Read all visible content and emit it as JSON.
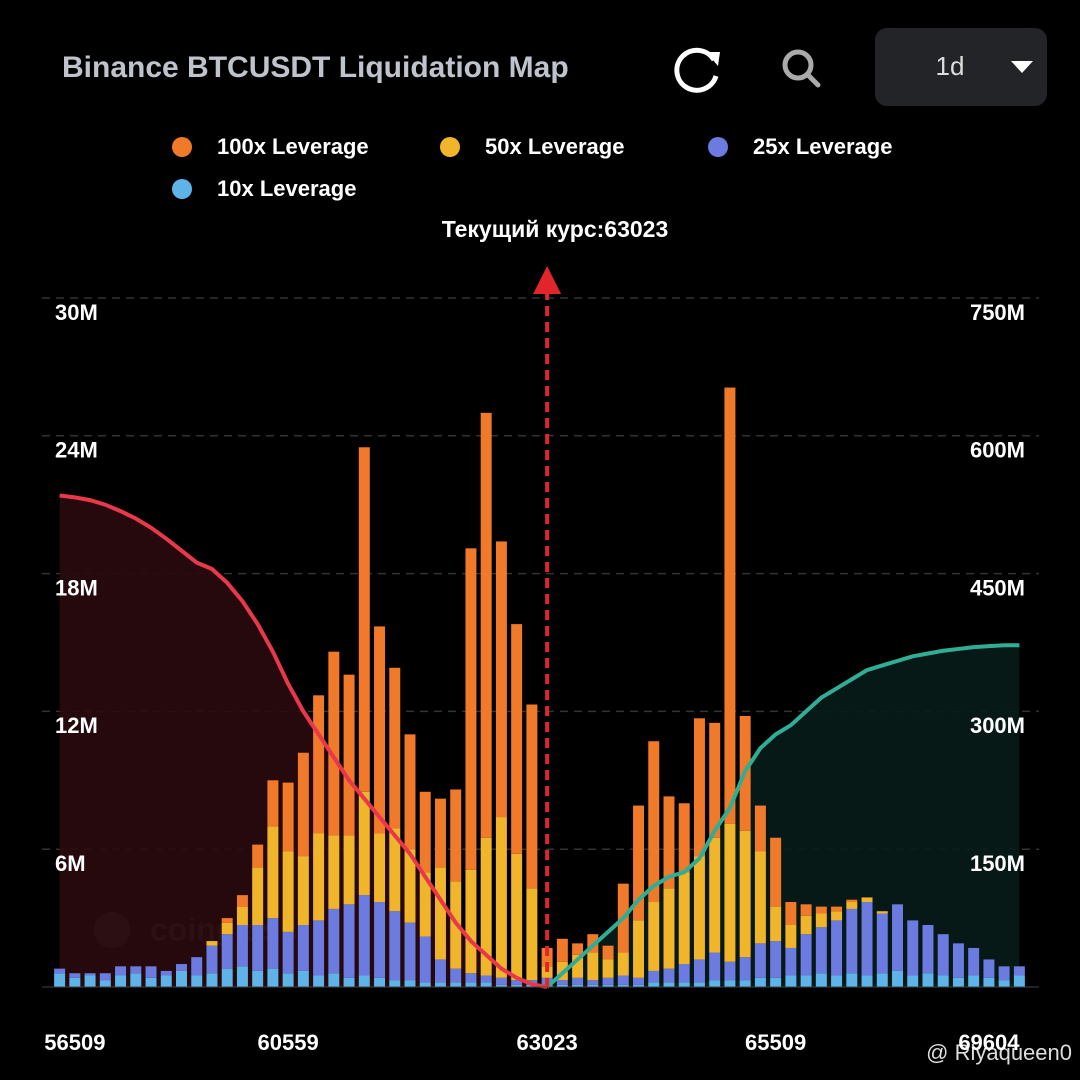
{
  "header": {
    "title": "Binance BTCUSDT Liquidation Map",
    "interval": "1d"
  },
  "watermark": "coinglass",
  "credit": "@ Riyaqueen0",
  "chart_data": {
    "type": "bar",
    "stacked": true,
    "current_label": "Текущий курс:",
    "current_price": 63023,
    "categories": [
      null,
      "56509",
      null,
      null,
      null,
      null,
      null,
      null,
      null,
      null,
      null,
      null,
      null,
      null,
      null,
      "60559",
      null,
      null,
      null,
      null,
      null,
      null,
      null,
      null,
      null,
      null,
      null,
      null,
      null,
      null,
      null,
      null,
      "63023",
      null,
      null,
      null,
      null,
      null,
      null,
      null,
      null,
      null,
      null,
      null,
      null,
      null,
      null,
      "65509",
      null,
      null,
      null,
      null,
      null,
      null,
      null,
      null,
      null,
      null,
      null,
      null,
      null,
      "69604",
      null,
      null
    ],
    "series": [
      {
        "name": "100x Leverage",
        "color": "#f07a2a",
        "values": [
          0,
          0,
          0,
          0,
          0,
          0,
          0,
          0,
          0,
          0,
          0,
          0.2,
          0.5,
          1.0,
          2.0,
          3.0,
          4.5,
          6.0,
          8.0,
          7.0,
          15.0,
          9.0,
          7.0,
          5.0,
          3.5,
          3.0,
          4.0,
          14.0,
          18.5,
          12.0,
          10.0,
          8.0,
          0.8,
          1.0,
          0.5,
          0.8,
          0.6,
          3.0,
          5.0,
          7.0,
          4.0,
          3.0,
          6.0,
          5.0,
          19.0,
          5.0,
          2.0,
          3.0,
          1.0,
          0.5,
          0.3,
          0.2,
          0.1,
          0,
          0,
          0,
          0,
          0,
          0,
          0,
          0,
          0,
          0,
          0
        ]
      },
      {
        "name": "50x Leverage",
        "color": "#f0b52a",
        "values": [
          0,
          0,
          0,
          0,
          0,
          0,
          0,
          0,
          0,
          0,
          0.2,
          0.5,
          0.8,
          2.5,
          4.0,
          3.5,
          3.0,
          3.8,
          3.2,
          3.0,
          4.5,
          3.0,
          3.6,
          3.2,
          2.8,
          4.0,
          3.8,
          4.5,
          6.0,
          7.0,
          5.5,
          4.0,
          0.5,
          0.8,
          1.0,
          1.2,
          0.8,
          1.0,
          2.5,
          3.0,
          3.5,
          4.0,
          4.5,
          5.0,
          6.0,
          5.5,
          4.0,
          1.5,
          1.0,
          0.8,
          0.6,
          0.4,
          0.3,
          0.2,
          0.1,
          0,
          0,
          0,
          0,
          0,
          0,
          0,
          0,
          0
        ]
      },
      {
        "name": "25x Leverage",
        "color": "#6b7be0",
        "values": [
          0.2,
          0.2,
          0.1,
          0.3,
          0.4,
          0.3,
          0.5,
          0.2,
          0.3,
          0.8,
          1.2,
          1.5,
          1.8,
          2.0,
          2.2,
          1.8,
          2.0,
          2.4,
          2.8,
          3.2,
          3.5,
          3.3,
          3.0,
          2.5,
          2.0,
          1.0,
          0.6,
          0.4,
          0.3,
          0.3,
          0.2,
          0.2,
          0.3,
          0.2,
          0.3,
          0.2,
          0.3,
          0.4,
          0.3,
          0.5,
          0.6,
          0.8,
          1.0,
          1.2,
          0.8,
          1.0,
          1.5,
          1.6,
          1.2,
          1.8,
          2.0,
          2.4,
          2.8,
          3.2,
          2.6,
          2.9,
          2.4,
          2.1,
          1.8,
          1.5,
          1.2,
          0.8,
          0.6,
          0.4
        ]
      },
      {
        "name": "10x Leverage",
        "color": "#5eb4e8",
        "values": [
          0.6,
          0.4,
          0.5,
          0.3,
          0.5,
          0.6,
          0.4,
          0.5,
          0.7,
          0.5,
          0.6,
          0.8,
          0.9,
          0.7,
          0.8,
          0.6,
          0.7,
          0.5,
          0.6,
          0.4,
          0.5,
          0.4,
          0.3,
          0.3,
          0.2,
          0.2,
          0.2,
          0.2,
          0.2,
          0.1,
          0.1,
          0.1,
          0.1,
          0.1,
          0.1,
          0.1,
          0.1,
          0.1,
          0.1,
          0.2,
          0.2,
          0.2,
          0.2,
          0.3,
          0.3,
          0.3,
          0.4,
          0.4,
          0.5,
          0.5,
          0.6,
          0.5,
          0.6,
          0.5,
          0.6,
          0.7,
          0.5,
          0.6,
          0.5,
          0.4,
          0.5,
          0.4,
          0.3,
          0.5
        ]
      }
    ],
    "lines": [
      {
        "color": "#e8384a",
        "fill": "#2a0a0e",
        "axis": "y2",
        "values": [
          535,
          533,
          530,
          525,
          518,
          510,
          500,
          488,
          475,
          462,
          455,
          440,
          420,
          395,
          365,
          330,
          300,
          275,
          250,
          225,
          205,
          185,
          165,
          145,
          120,
          95,
          70,
          50,
          35,
          20,
          10,
          3,
          0,
          null,
          null,
          null,
          null,
          null,
          null,
          null,
          null,
          null,
          null,
          null,
          null,
          null,
          null,
          null,
          null,
          null,
          null,
          null,
          null,
          null,
          null,
          null,
          null,
          null,
          null,
          null,
          null,
          null,
          null,
          null
        ]
      },
      {
        "color": "#2fae95",
        "fill": "#071c1a",
        "axis": "y2",
        "values": [
          null,
          null,
          null,
          null,
          null,
          null,
          null,
          null,
          null,
          null,
          null,
          null,
          null,
          null,
          null,
          null,
          null,
          null,
          null,
          null,
          null,
          null,
          null,
          null,
          null,
          null,
          null,
          null,
          null,
          null,
          null,
          null,
          0,
          15,
          30,
          45,
          60,
          75,
          95,
          110,
          120,
          125,
          140,
          170,
          195,
          235,
          260,
          275,
          285,
          300,
          315,
          325,
          335,
          345,
          350,
          355,
          360,
          363,
          366,
          368,
          370,
          371,
          372,
          372
        ]
      }
    ],
    "ylim": [
      0,
      30
    ],
    "yticks": [
      {
        "value": 6,
        "label": "6M"
      },
      {
        "value": 12,
        "label": "12M"
      },
      {
        "value": 18,
        "label": "18M"
      },
      {
        "value": 24,
        "label": "24M"
      },
      {
        "value": 30,
        "label": "30M"
      }
    ],
    "y2lim": [
      0,
      750
    ],
    "y2ticks": [
      {
        "value": 150,
        "label": "150M"
      },
      {
        "value": 300,
        "label": "300M"
      },
      {
        "value": 450,
        "label": "450M"
      },
      {
        "value": 600,
        "label": "600M"
      },
      {
        "value": 750,
        "label": "750M"
      }
    ],
    "grid": true
  }
}
